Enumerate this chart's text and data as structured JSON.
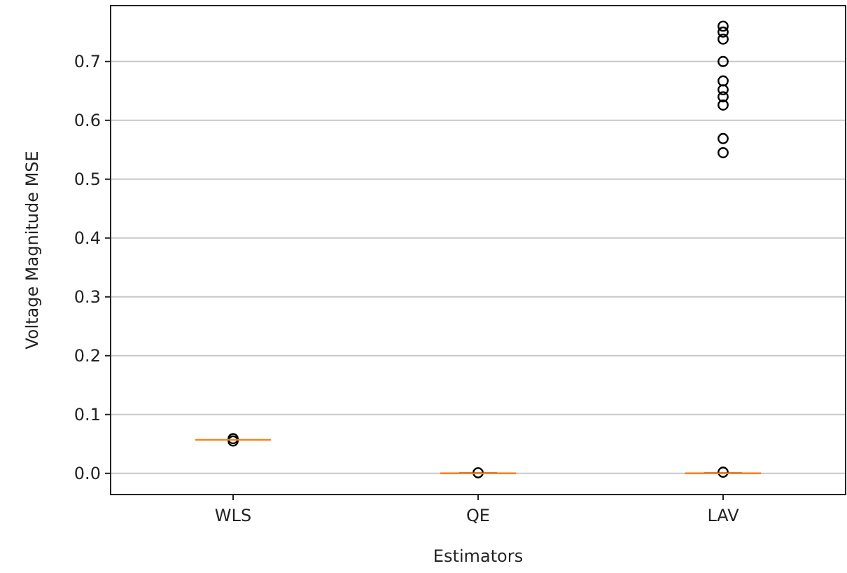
{
  "chart_data": {
    "type": "box",
    "xlabel": "Estimators",
    "ylabel": "Voltage Magnitude MSE",
    "categories": [
      "WLS",
      "QE",
      "LAV"
    ],
    "series": [
      {
        "color": "#ff7f0e",
        "boxes": [
          {
            "low": 0.057,
            "q1": 0.057,
            "median": 0.057,
            "q3": 0.057,
            "high": 0.057,
            "outliers": [
              0.055,
              0.059
            ]
          },
          {
            "low": 0,
            "q1": 0,
            "median": 0,
            "q3": 0,
            "high": 0,
            "outliers": [
              0.001
            ]
          },
          {
            "low": 0,
            "q1": 0,
            "median": 0,
            "q3": 0,
            "high": 0,
            "outliers": [
              0.002,
              0.76,
              0.75,
              0.738,
              0.7,
              0.667,
              0.652,
              0.64,
              0.626,
              0.569,
              0.545
            ]
          }
        ]
      }
    ],
    "ylim": [
      -0.036,
      0.795
    ],
    "yticks": [
      {
        "value": 0,
        "label": "0.0"
      },
      0.1,
      0.2,
      0.3,
      0.4,
      0.5,
      0.6,
      0.7
    ],
    "grid": "y",
    "marker": "circle"
  }
}
